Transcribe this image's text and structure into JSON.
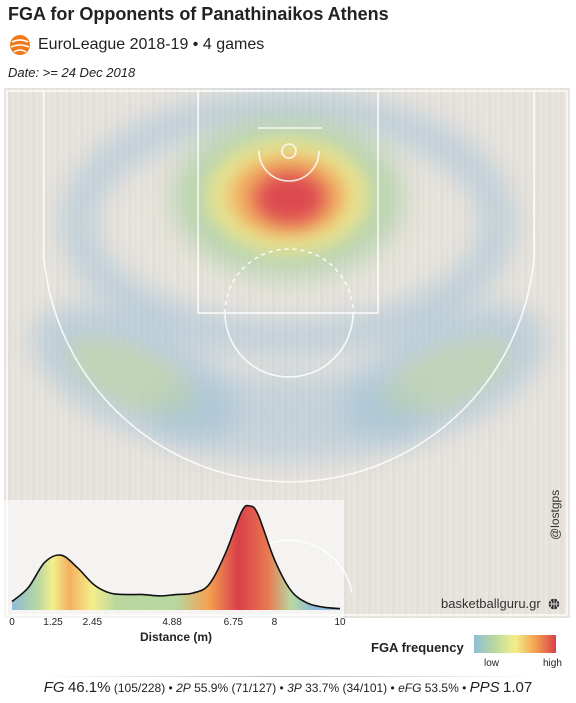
{
  "header": {
    "title": "FGA for Opponents of Panathinaikos Athens",
    "subtitle": "EuroLeague 2018-19 • 4 games",
    "date": "Date: >= 24 Dec 2018"
  },
  "watermark": {
    "source": "basketballguru.gr",
    "handle": "@lostgps"
  },
  "legend": {
    "title": "FGA frequency",
    "low": "low",
    "high": "high",
    "colors": [
      "#8fbcd8",
      "#b8d8a0",
      "#f4ee8a",
      "#f4a050",
      "#d8404a"
    ]
  },
  "stats": {
    "fg_label": "FG",
    "fg_pct": "46.1%",
    "fg_counts": "(105/228)",
    "p2_label": "2P",
    "p2_pct": "55.9%",
    "p2_counts": "(71/127)",
    "p3_label": "3P",
    "p3_pct": "33.7%",
    "p3_counts": "(34/101)",
    "efg_label": "eFG",
    "efg_pct": "53.5%",
    "pps_label": "PPS",
    "pps_value": "1.07"
  },
  "chart_data": {
    "type": "area",
    "title": "FGA for Opponents of Panathinaikos Athens",
    "xlabel": "Distance (m)",
    "ylabel": "",
    "xlim": [
      0,
      10
    ],
    "x_ticks": [
      0,
      1.25,
      2.45,
      4.88,
      6.75,
      8,
      10
    ],
    "x_tick_labels": [
      "0",
      "1.25",
      "2.45",
      "4.88",
      "6.75",
      "8",
      "10"
    ],
    "x": [
      0,
      0.5,
      1.0,
      1.5,
      2.0,
      2.5,
      3.0,
      3.5,
      4.0,
      4.5,
      5.0,
      5.5,
      6.0,
      6.5,
      7.0,
      7.25,
      7.5,
      8.0,
      8.5,
      9.0,
      9.5,
      10.0
    ],
    "values": [
      0.06,
      0.16,
      0.34,
      0.39,
      0.3,
      0.18,
      0.12,
      0.11,
      0.11,
      0.1,
      0.11,
      0.12,
      0.18,
      0.4,
      0.7,
      0.74,
      0.68,
      0.36,
      0.14,
      0.05,
      0.02,
      0.01
    ],
    "color_stops": [
      {
        "x": 0,
        "color": "#8fbcd8"
      },
      {
        "x": 0.8,
        "color": "#b8d8a0"
      },
      {
        "x": 1.25,
        "color": "#f4ee8a"
      },
      {
        "x": 1.75,
        "color": "#f4b060"
      },
      {
        "x": 2.45,
        "color": "#f4ee8a"
      },
      {
        "x": 3.2,
        "color": "#b8d8a0"
      },
      {
        "x": 5.0,
        "color": "#b8d8a0"
      },
      {
        "x": 6.0,
        "color": "#f4a050"
      },
      {
        "x": 6.9,
        "color": "#d8404a"
      },
      {
        "x": 7.8,
        "color": "#e87850"
      },
      {
        "x": 8.5,
        "color": "#b8d8a0"
      },
      {
        "x": 9.2,
        "color": "#8fbcd8"
      },
      {
        "x": 10,
        "color": "#8fbcd8"
      }
    ],
    "heatmap": {
      "type": "heatmap",
      "hotspots": [
        {
          "zone": "restricted-area",
          "intensity": "high"
        },
        {
          "zone": "paint",
          "intensity": "medium"
        },
        {
          "zone": "left-wing-three",
          "intensity": "low-medium"
        },
        {
          "zone": "right-wing-three",
          "intensity": "low-medium"
        }
      ]
    }
  }
}
